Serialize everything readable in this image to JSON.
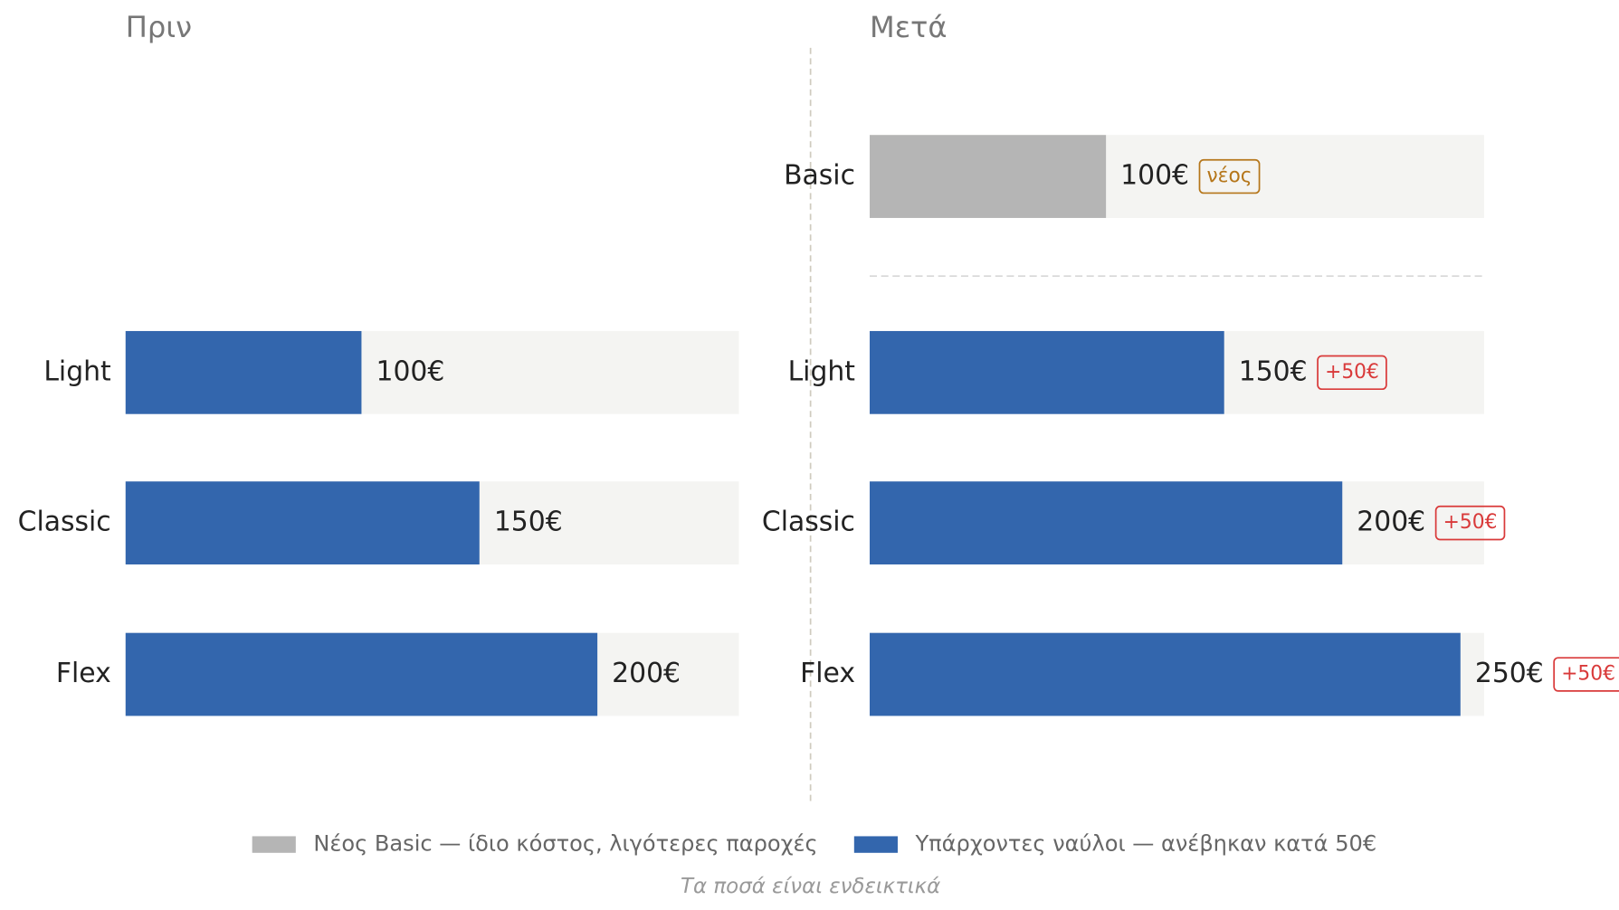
{
  "chart_data": [
    {
      "type": "bar",
      "title": "Πριν",
      "categories": [
        "Light",
        "Classic",
        "Flex"
      ],
      "values": [
        100,
        150,
        200
      ],
      "value_labels": [
        "100€",
        "150€",
        "200€"
      ],
      "colors": [
        "#3366ad",
        "#3366ad",
        "#3366ad"
      ],
      "xlim": [
        0,
        260
      ]
    },
    {
      "type": "bar",
      "title": "Μετά",
      "categories": [
        "Basic",
        "Light",
        "Classic",
        "Flex"
      ],
      "values": [
        100,
        150,
        200,
        250
      ],
      "value_labels": [
        "100€",
        "150€",
        "200€",
        "250€"
      ],
      "colors": [
        "#b5b5b5",
        "#3366ad",
        "#3366ad",
        "#3366ad"
      ],
      "badges": [
        "νέος",
        "+50€",
        "+50€",
        "+50€"
      ],
      "badge_colors": [
        "#b5761a",
        "#d93a3a",
        "#d93a3a",
        "#d93a3a"
      ],
      "xlim": [
        0,
        260
      ]
    }
  ],
  "legend": [
    {
      "label": "Νέος Basic — ίδιο κόστος, λιγότερες παροχές",
      "color": "#b5b5b5"
    },
    {
      "label": "Υπάρχοντες ναύλοι — ανέβηκαν κατά 50€",
      "color": "#3366ad"
    }
  ],
  "note": "Τα ποσά είναι ενδεικτικά"
}
